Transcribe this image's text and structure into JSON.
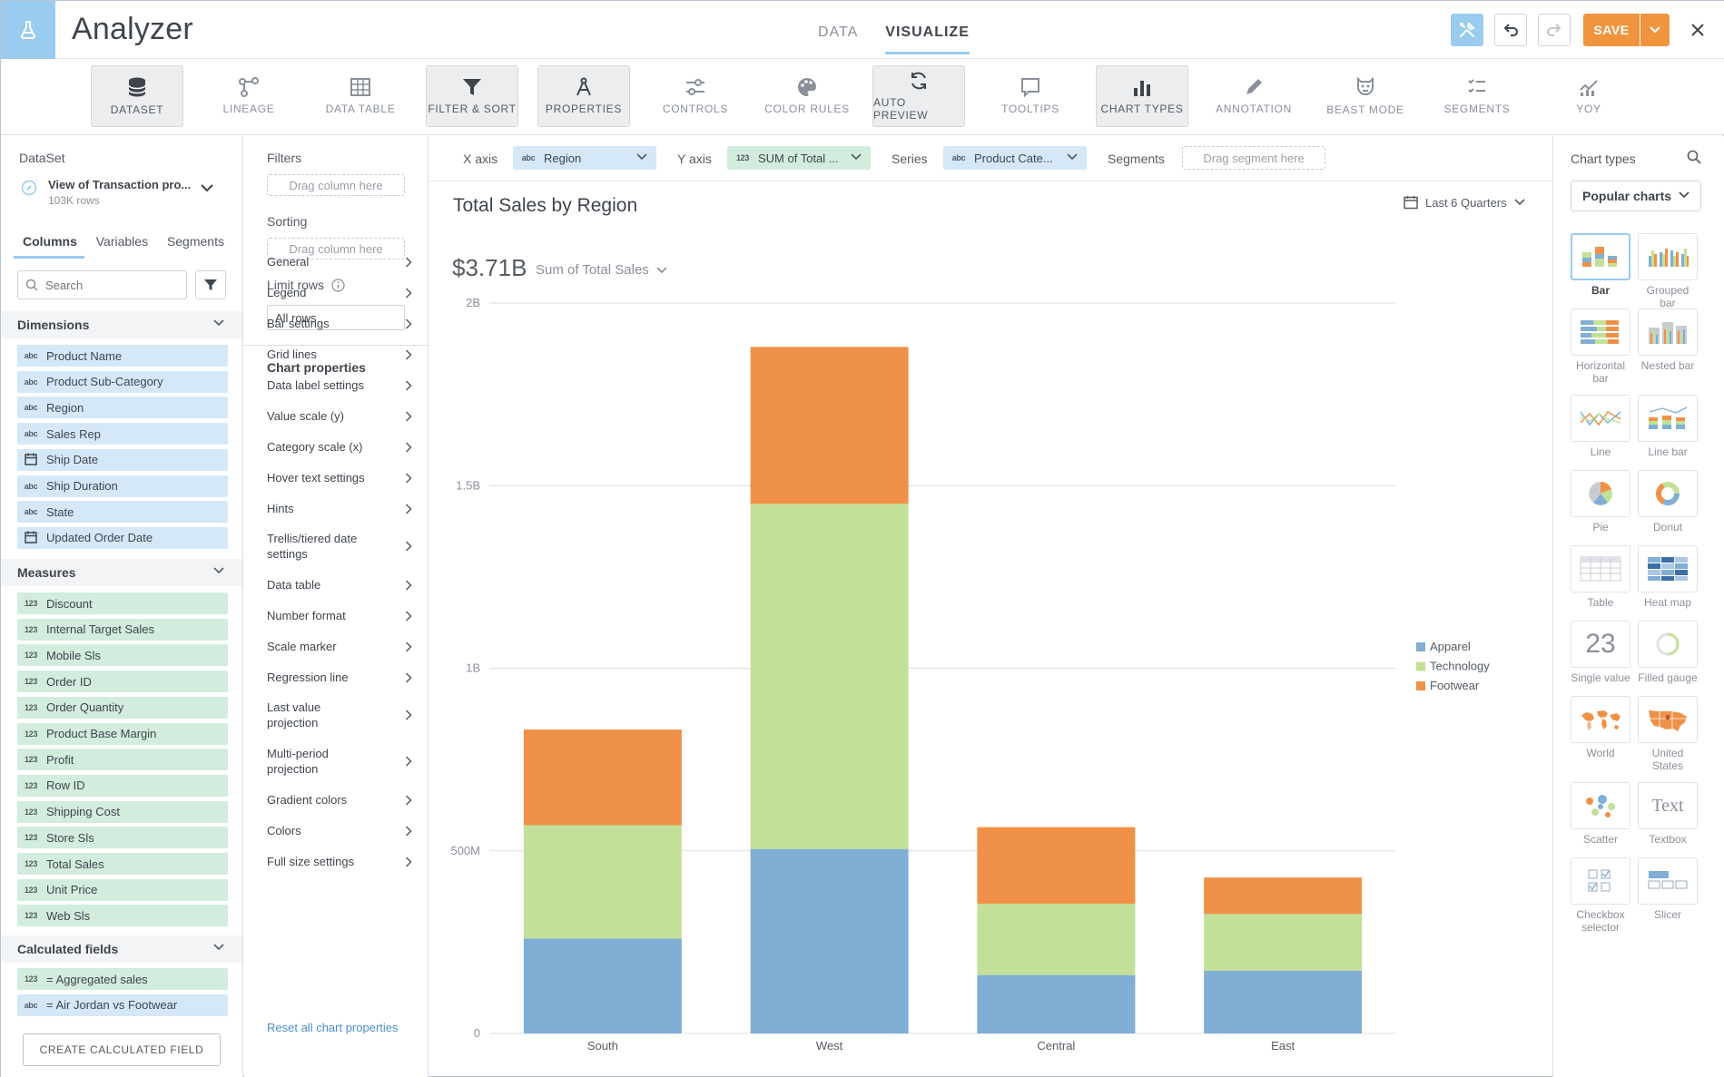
{
  "header": {
    "title": "Analyzer",
    "tabs": [
      {
        "label": "DATA"
      },
      {
        "label": "VISUALIZE"
      }
    ],
    "save_label": "SAVE"
  },
  "toolbar": {
    "items": [
      {
        "label": "DATASET",
        "icon": "database-icon"
      },
      {
        "label": "LINEAGE",
        "icon": "lineage-icon"
      },
      {
        "label": "DATA TABLE",
        "icon": "table-icon"
      },
      {
        "label": "FILTER & SORT",
        "icon": "filter-icon"
      },
      {
        "label": "PROPERTIES",
        "icon": "compass-icon"
      },
      {
        "label": "CONTROLS",
        "icon": "sliders-icon"
      },
      {
        "label": "COLOR RULES",
        "icon": "palette-icon"
      },
      {
        "label": "AUTO PREVIEW",
        "icon": "refresh-icon"
      },
      {
        "label": "TOOLTIPS",
        "icon": "tooltip-icon"
      },
      {
        "label": "CHART TYPES",
        "icon": "bar-chart-icon"
      },
      {
        "label": "ANNOTATION",
        "icon": "pencil-icon"
      },
      {
        "label": "BEAST MODE",
        "icon": "beast-icon"
      },
      {
        "label": "SEGMENTS",
        "icon": "segments-icon"
      },
      {
        "label": "YOY",
        "icon": "yoy-icon"
      }
    ]
  },
  "dataset": {
    "label": "DataSet",
    "name": "View of Transaction pro...",
    "rows": "103K rows"
  },
  "panel_tabs": [
    {
      "label": "Columns"
    },
    {
      "label": "Variables"
    },
    {
      "label": "Segments"
    }
  ],
  "search": {
    "placeholder": "Search"
  },
  "dimensions": {
    "title": "Dimensions",
    "items": [
      {
        "type": "abc",
        "label": "Product Name"
      },
      {
        "type": "abc",
        "label": "Product Sub-Category"
      },
      {
        "type": "abc",
        "label": "Region"
      },
      {
        "type": "abc",
        "label": "Sales Rep"
      },
      {
        "type": "date",
        "label": "Ship Date"
      },
      {
        "type": "abc",
        "label": "Ship Duration"
      },
      {
        "type": "abc",
        "label": "State"
      },
      {
        "type": "date",
        "label": "Updated Order Date"
      }
    ]
  },
  "measures": {
    "title": "Measures",
    "items": [
      {
        "type": "123",
        "label": "Discount"
      },
      {
        "type": "123",
        "label": "Internal Target Sales"
      },
      {
        "type": "123",
        "label": "Mobile Sls"
      },
      {
        "type": "123",
        "label": "Order ID"
      },
      {
        "type": "123",
        "label": "Order Quantity"
      },
      {
        "type": "123",
        "label": "Product Base Margin"
      },
      {
        "type": "123",
        "label": "Profit"
      },
      {
        "type": "123",
        "label": "Row ID"
      },
      {
        "type": "123",
        "label": "Shipping Cost"
      },
      {
        "type": "123",
        "label": "Store Sls"
      },
      {
        "type": "123",
        "label": "Total Sales"
      },
      {
        "type": "123",
        "label": "Unit Price"
      },
      {
        "type": "123",
        "label": "Web Sls"
      }
    ]
  },
  "calculated": {
    "title": "Calculated fields",
    "items": [
      {
        "type": "123",
        "label": "= Aggregated sales",
        "kind": "meas"
      },
      {
        "type": "abc",
        "label": "= Air Jordan vs Footwear",
        "kind": "dim"
      }
    ],
    "create_label": "CREATE CALCULATED FIELD"
  },
  "properties": {
    "filters_label": "Filters",
    "filters_drop": "Drag column here",
    "sorting_label": "Sorting",
    "sorting_drop": "Drag column here",
    "limit_label": "Limit rows",
    "limit_value": "All rows",
    "chart_props_title": "Chart properties",
    "items": [
      "General",
      "Legend",
      "Bar settings",
      "Grid lines",
      "Data label settings",
      "Value scale (y)",
      "Category scale (x)",
      "Hover text settings",
      "Hints",
      "Trellis/tiered date settings",
      "Data table",
      "Number format",
      "Scale marker",
      "Regression line",
      "Last value projection",
      "Multi-period projection",
      "Gradient colors",
      "Colors",
      "Full size settings"
    ],
    "reset_label": "Reset all chart properties"
  },
  "axes": {
    "x_label": "X axis",
    "x_value": "Region",
    "y_label": "Y axis",
    "y_value": "SUM of Total ...",
    "series_label": "Series",
    "series_value": "Product Cate...",
    "segments_label": "Segments",
    "segments_drop": "Drag segment here"
  },
  "chart_header": {
    "title": "Total Sales by Region",
    "date_range": "Last 6 Quarters",
    "summary_value": "$3.71B",
    "summary_label": "Sum of Total Sales"
  },
  "colors": {
    "apparel": "#80aed4",
    "technology": "#c3e098",
    "footwear": "#ef9148",
    "accent": "#99ccee",
    "save": "#f0953e"
  },
  "chart_data": {
    "type": "bar",
    "stacked": true,
    "title": "Total Sales by Region",
    "categories": [
      "South",
      "West",
      "Central",
      "East"
    ],
    "series": [
      {
        "name": "Apparel",
        "values": [
          260000000,
          505000000,
          160000000,
          172000000
        ]
      },
      {
        "name": "Technology",
        "values": [
          310000000,
          945000000,
          195000000,
          155000000
        ]
      },
      {
        "name": "Footwear",
        "values": [
          262000000,
          430000000,
          210000000,
          100000000
        ]
      }
    ],
    "ylim": [
      0,
      2000000000
    ],
    "yticks": [
      {
        "value": 0,
        "label": "0"
      },
      {
        "value": 500000000,
        "label": "500M"
      },
      {
        "value": 1000000000,
        "label": "1B"
      },
      {
        "value": 1500000000,
        "label": "1.5B"
      },
      {
        "value": 2000000000,
        "label": "2B"
      }
    ],
    "grid": true,
    "legend_position": "right"
  },
  "chart_types": {
    "title": "Chart types",
    "selected_group": "Popular charts",
    "items": [
      {
        "label": "Bar"
      },
      {
        "label": "Grouped bar"
      },
      {
        "label": "Horizontal bar"
      },
      {
        "label": "Nested bar"
      },
      {
        "label": "Line"
      },
      {
        "label": "Line bar"
      },
      {
        "label": "Pie"
      },
      {
        "label": "Donut"
      },
      {
        "label": "Table"
      },
      {
        "label": "Heat map"
      },
      {
        "label": "Single value",
        "glyph": "23"
      },
      {
        "label": "Filled gauge"
      },
      {
        "label": "World"
      },
      {
        "label": "United States"
      },
      {
        "label": "Scatter"
      },
      {
        "label": "Textbox",
        "glyph": "Text"
      },
      {
        "label": "Checkbox selector"
      },
      {
        "label": "Slicer"
      }
    ]
  }
}
